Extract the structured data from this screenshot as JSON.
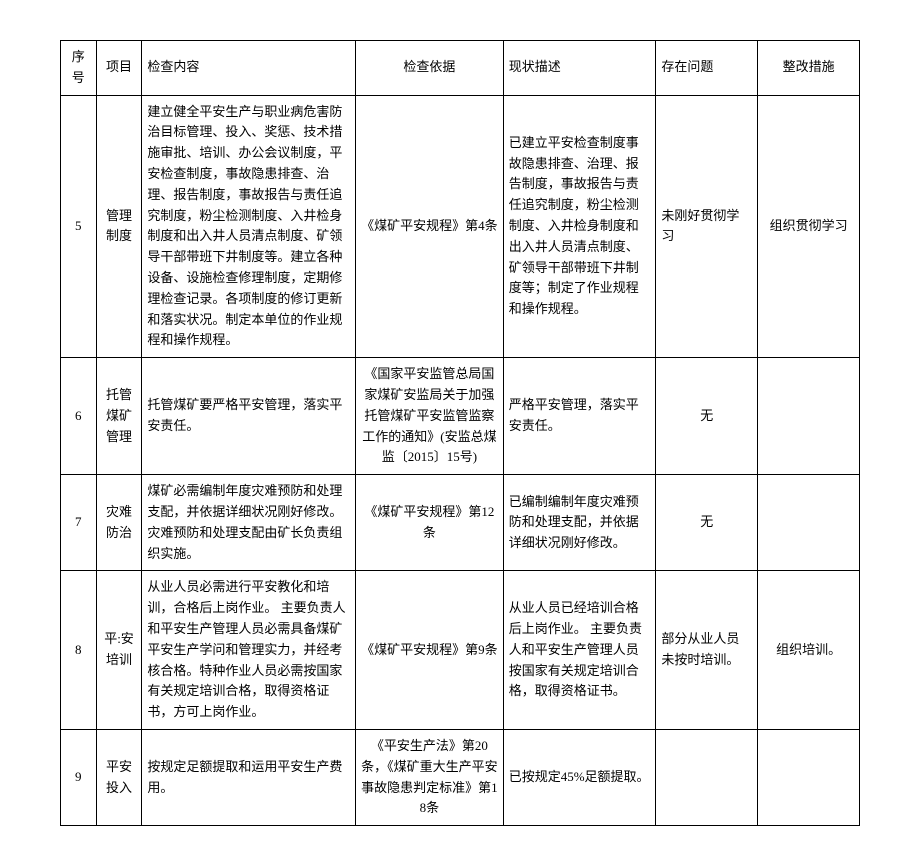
{
  "table": {
    "headers": {
      "seq": "序号",
      "project": "项目",
      "content": "检查内容",
      "basis": "检查依据",
      "status": "现状描述",
      "issue": "存在问题",
      "measure": "整改措施"
    },
    "rows": [
      {
        "seq": "5",
        "project": "管理制度",
        "content": "建立健全平安生产与职业病危害防治目标管理、投入、奖惩、技术措施审批、培训、办公会议制度，平安检查制度，事故隐患排查、治理、报告制度，事故报告与责任追究制度，粉尘检测制度、入井检身制度和出入井人员清点制度、矿领导干部带班下井制度等。建立各种设备、设施检查修理制度，定期修理检查记录。各项制度的修订更新和落实状况。制定本单位的作业规程和操作规程。",
        "basis": "《煤矿平安规程》第4条",
        "status": "已建立平安检查制度事故隐患排查、治理、报告制度，事故报告与责任追究制度，粉尘检测制度、入井检身制度和出入井人员清点制度、矿领导干部带班下井制度等；制定了作业规程和操作规程。",
        "issue": "未刚好贯彻学习",
        "measure": "组织贯彻学习"
      },
      {
        "seq": "6",
        "project": "托管煤矿管理",
        "content": "托管煤矿要严格平安管理，落实平安责任。",
        "basis": "《国家平安监管总局国家煤矿安监局关于加强托管煤矿平安监管监察工作的通知》(安监总煤监〔2015〕15号)",
        "status": "严格平安管理，落实平安责任。",
        "issue": "无",
        "measure": ""
      },
      {
        "seq": "7",
        "project": "灾难防治",
        "content": "煤矿必需编制年度灾难预防和处理支配，并依据详细状况刚好修改。灾难预防和处理支配由矿长负责组织实施。",
        "basis": "《煤矿平安规程》第12条",
        "status": "已编制编制年度灾难预防和处理支配，并依据详细状况刚好修改。",
        "issue": "无",
        "measure": ""
      },
      {
        "seq": "8",
        "project": "平:安培训",
        "content": "从业人员必需进行平安教化和培训，合格后上岗作业。\n主要负责人和平安生产管理人员必需具备煤矿平安生产学问和管理实力，并经考核合格。特种作业人员必需按国家有关规定培训合格，取得资格证书，方可上岗作业。",
        "basis": "《煤矿平安规程》第9条",
        "status": "从业人员已经培训合格后上岗作业。\n主要负责人和平安生产管理人员按国家有关规定培训合格，取得资格证书。",
        "issue": "部分从业人员未按时培训。",
        "measure": "组织培训。"
      },
      {
        "seq": "9",
        "project": "平安投入",
        "content": "按规定足额提取和运用平安生产费用。",
        "basis": "《平安生产法》第20条，《煤矿重大生产平安事故隐患判定标准》第18条",
        "status": "已按规定45%足额提取。",
        "issue": "",
        "measure": ""
      }
    ]
  },
  "style": {
    "border_color": "#000000",
    "background_color": "#ffffff",
    "text_color": "#000000",
    "font_size": 13,
    "font_family": "SimSun"
  }
}
